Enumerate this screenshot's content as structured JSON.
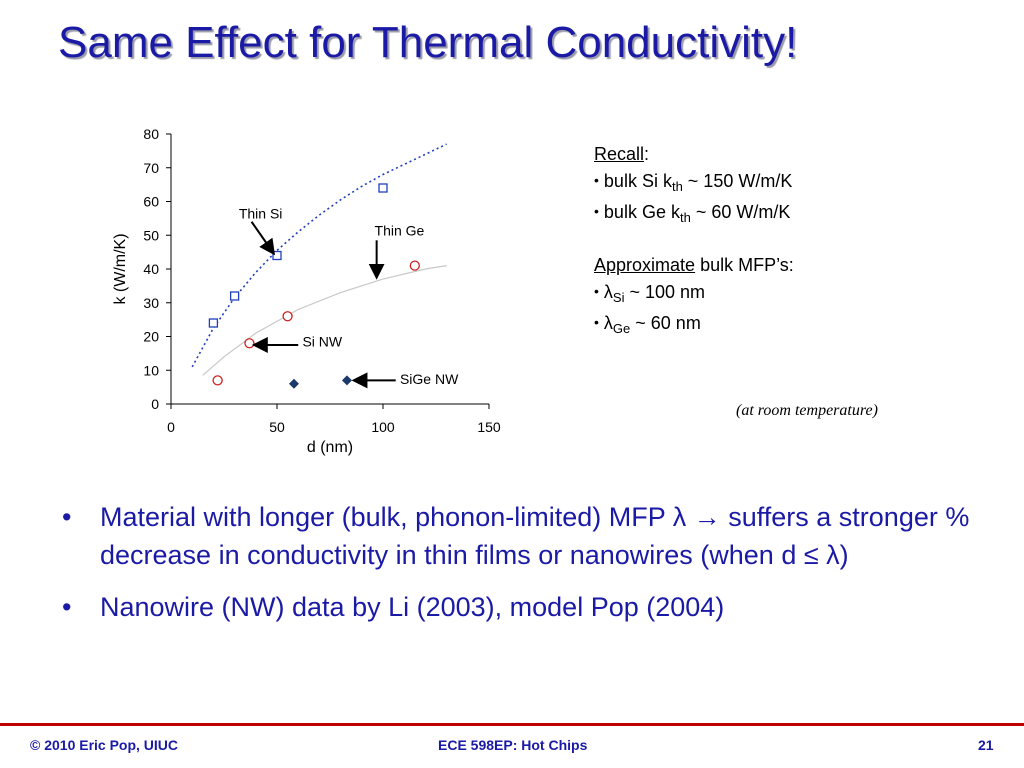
{
  "slide": {
    "title": "Same Effect for Thermal Conductivity!",
    "recall": {
      "label": "Recall",
      "colon": ":",
      "items": [
        {
          "bullet": "•",
          "pre": "bulk Ge k",
          "sub": "th",
          "post": " ~ 60 W/m/K"
        }
      ],
      "items_si": {
        "bullet": "•",
        "pre": "bulk Si k",
        "sub": "th",
        "post": " ~ 150 W/m/K"
      }
    },
    "mfp": {
      "label": "Approximate",
      "rest": " bulk MFP’s:",
      "si": {
        "bullet": "•",
        "pre": "λ",
        "sub": "Si",
        "post": " ~ 100 nm"
      },
      "ge": {
        "bullet": "•",
        "pre": "λ",
        "sub": "Ge",
        "post": " ~ 60 nm"
      }
    },
    "note": "(at room temperature)",
    "bullets": [
      {
        "dot": "•",
        "text": "Material with longer (bulk, phonon-limited) MFP λ → suffers a stronger % decrease in conductivity in thin films or nanowires (when d ≤ λ)"
      },
      {
        "dot": "•",
        "text": "Nanowire (NW) data by Li (2003), model Pop (2004)"
      }
    ],
    "footer": {
      "left": "© 2010 Eric Pop, UIUC",
      "center": "ECE 598EP: Hot Chips",
      "right": "21"
    }
  },
  "chart_data": {
    "type": "scatter",
    "xlabel": "d (nm)",
    "ylabel": "k (W/m/K)",
    "xlim": [
      0,
      150
    ],
    "ylim": [
      0,
      80
    ],
    "xticks": [
      0,
      50,
      100,
      150
    ],
    "yticks": [
      0,
      10,
      20,
      30,
      40,
      50,
      60,
      70,
      80
    ],
    "grid": false,
    "colors": {
      "si": "#1f3fbf",
      "ge": "#d02020",
      "sige": "#1b3a6b",
      "model_si": "#1f3fbf",
      "model_ge": "#c8c8c8"
    },
    "series": [
      {
        "key": "si",
        "marker": "square-open",
        "x": [
          20,
          30,
          50,
          100
        ],
        "y": [
          24,
          32,
          44,
          64
        ]
      },
      {
        "key": "ge",
        "marker": "circle-open",
        "x": [
          22,
          37,
          55,
          115
        ],
        "y": [
          7,
          18,
          26,
          41
        ]
      },
      {
        "key": "sige",
        "marker": "diamond-filled",
        "x": [
          58,
          83
        ],
        "y": [
          6,
          7
        ]
      },
      {
        "key": "model_si",
        "line": "dotted",
        "x": [
          10,
          20,
          30,
          40,
          50,
          60,
          70,
          80,
          90,
          100,
          110,
          120,
          130
        ],
        "y": [
          11,
          22.5,
          31.5,
          39,
          45.5,
          51,
          56,
          60.5,
          64.5,
          68,
          71,
          74,
          77
        ]
      },
      {
        "key": "model_ge",
        "line": "solid",
        "x": [
          15,
          25,
          40,
          60,
          80,
          100,
          120,
          130
        ],
        "y": [
          8.5,
          14,
          21,
          28,
          33,
          37,
          40,
          41
        ]
      }
    ],
    "annotations": [
      {
        "text": "Thin Si",
        "x": 32,
        "y": 55,
        "arrow_from": [
          38,
          54
        ],
        "arrow_to": [
          48,
          45
        ]
      },
      {
        "text": "Thin Ge",
        "x": 96,
        "y": 50,
        "arrow_from": [
          97,
          48.5
        ],
        "arrow_to": [
          97,
          38
        ]
      },
      {
        "text": "Si NW",
        "x": 62,
        "y": 17,
        "arrow_from": [
          60,
          17.5
        ],
        "arrow_to": [
          40,
          17.5
        ]
      },
      {
        "text": "SiGe NW",
        "x": 108,
        "y": 6,
        "arrow_from": [
          106,
          7
        ],
        "arrow_to": [
          87,
          7
        ]
      }
    ]
  }
}
